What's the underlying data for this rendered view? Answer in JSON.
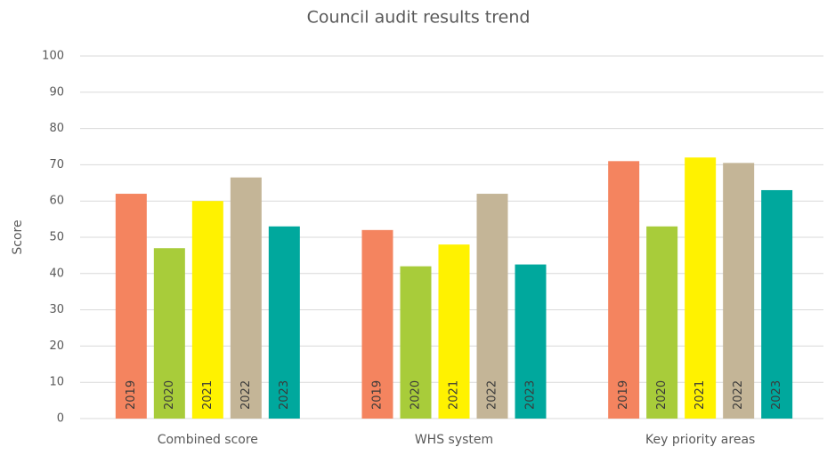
{
  "chart_data": {
    "type": "bar",
    "title": "Council audit results trend",
    "y_label": "Score",
    "categories": [
      "Combined score",
      "WHS system",
      "Key priority areas"
    ],
    "series": [
      {
        "name": "2019",
        "color": "#f4845f",
        "values": [
          62,
          52,
          71
        ]
      },
      {
        "name": "2020",
        "color": "#a8cc3a",
        "values": [
          47,
          42,
          53
        ]
      },
      {
        "name": "2021",
        "color": "#fff200",
        "values": [
          60,
          48,
          72
        ]
      },
      {
        "name": "2022",
        "color": "#c4b597",
        "values": [
          66.5,
          62,
          70.5
        ]
      },
      {
        "name": "2023",
        "color": "#00a89d",
        "values": [
          53,
          42.5,
          63
        ]
      }
    ],
    "ylim": [
      0,
      100
    ],
    "yticks": [
      0,
      10,
      20,
      30,
      40,
      50,
      60,
      70,
      80,
      90,
      100
    ],
    "grid": true
  }
}
